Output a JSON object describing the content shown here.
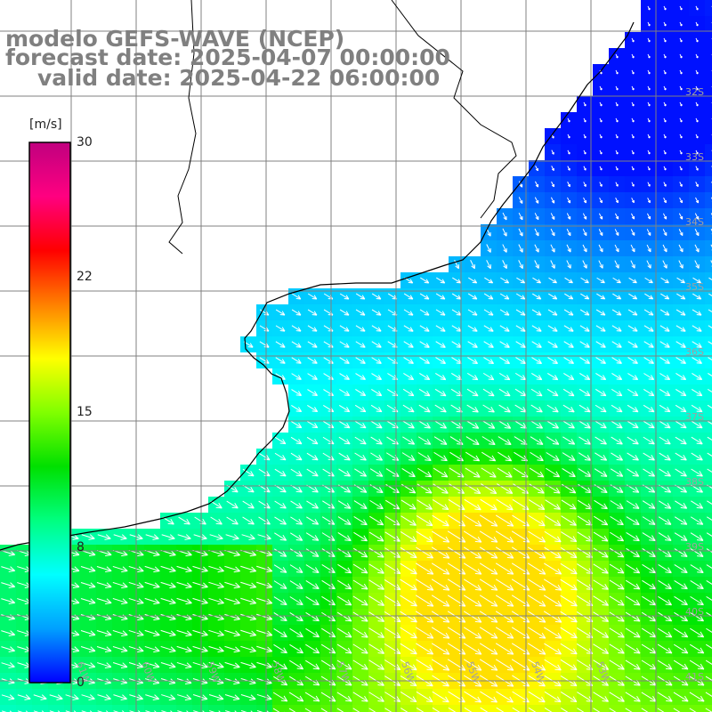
{
  "title": {
    "line1": "modelo GEFS-WAVE (NCEP)",
    "line2": "forecast date: 2025-04-07 00:00:00",
    "line3": "valid date: 2025-04-22 06:00:00"
  },
  "colorbar": {
    "unit": "[m/s]",
    "ticks": [
      "30",
      "22",
      "15",
      "8",
      "0"
    ],
    "range": [
      0,
      30
    ],
    "colors": [
      "#0000ff",
      "#00a0ff",
      "#00ffff",
      "#00ff80",
      "#00e000",
      "#80ff00",
      "#ffff00",
      "#ff8000",
      "#ff0000",
      "#ff0080",
      "#c0007f"
    ]
  },
  "lat_labels": [
    "32S",
    "33S",
    "34S",
    "35S",
    "36S",
    "37S",
    "38S",
    "39S",
    "40S",
    "41S"
  ],
  "lon_labels": [
    "61W",
    "60W",
    "59W",
    "58W",
    "57W",
    "56W",
    "55W",
    "54W",
    "53W"
  ],
  "colors": {
    "land": "#ffffff",
    "coast": "#000000",
    "grid": "#808080",
    "arrows": "#ffffff",
    "title": "#808080"
  }
}
